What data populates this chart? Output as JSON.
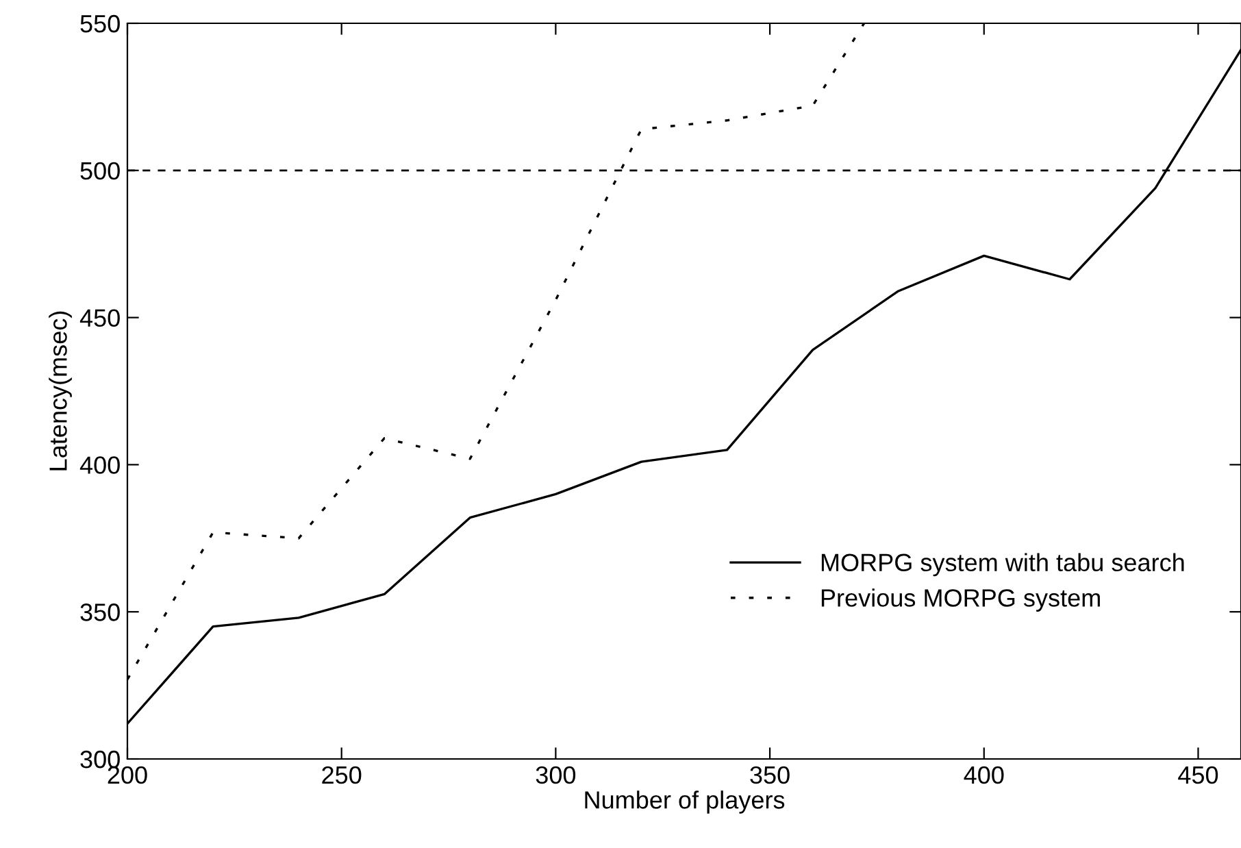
{
  "chart_data": {
    "type": "line",
    "xlabel": "Number of players",
    "ylabel": "Latency(msec)",
    "xlim": [
      200,
      460
    ],
    "xticks": [
      200,
      250,
      300,
      350,
      400,
      450
    ],
    "ylim": [
      300,
      550
    ],
    "yticks": [
      300,
      350,
      400,
      450,
      500,
      550
    ],
    "grid": false,
    "legend": "lower right",
    "marker": "none",
    "series": [
      {
        "name": "MORPG system with tabu search",
        "color": "#000000",
        "line_style": "solid",
        "x": [
          200,
          220,
          240,
          260,
          280,
          300,
          320,
          340,
          360,
          380,
          400,
          420,
          440,
          460
        ],
        "values": [
          312,
          345,
          348,
          356,
          382,
          390,
          401,
          405,
          439,
          459,
          471,
          463,
          494,
          541
        ]
      },
      {
        "name": "Previous MORPG system",
        "color": "#000000",
        "line_style": "dotted",
        "x": [
          200,
          220,
          240,
          260,
          280,
          300,
          320,
          340,
          360,
          372
        ],
        "values": [
          327,
          377,
          375,
          409,
          402,
          456,
          514,
          517,
          522,
          550
        ]
      }
    ],
    "ref_lines": [
      {
        "axis": "y",
        "value": 500,
        "color": "#000000",
        "line_style": "dashed"
      }
    ]
  }
}
